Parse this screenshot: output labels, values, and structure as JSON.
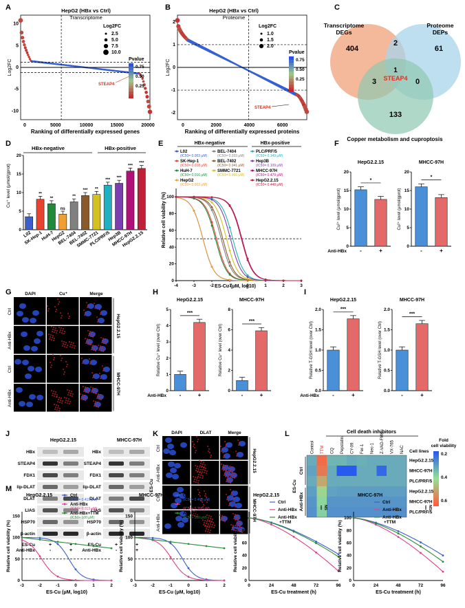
{
  "panels": {
    "A": {
      "letter": "A",
      "title": "HepG2 (HBx vs Ctrl)",
      "subtitle": "Transcriptome",
      "ylabel": "Log2FC",
      "xlabel": "Ranking of differentially expressed genes",
      "xticks": [
        "0",
        "5000",
        "10000",
        "15000",
        "20000"
      ],
      "yticks": [
        "-10",
        "-5",
        "0",
        "5",
        "10"
      ],
      "size_legend_title": "Log2FC",
      "size_legend": [
        "2.5",
        "5.0",
        "7.5",
        "10.0"
      ],
      "color_legend_title": "Pvalue",
      "color_legend": [
        "0.75",
        "0.50",
        "0.25"
      ],
      "annotation": "STEAP4"
    },
    "B": {
      "letter": "B",
      "title": "HepG2 (HBx vs Ctrl)",
      "subtitle": "Proteome",
      "ylabel": "Log2FC",
      "xlabel": "Ranking of differentially expressed proteins",
      "xticks": [
        "0",
        "2000",
        "4000",
        "6000"
      ],
      "yticks": [
        "-2",
        "-1",
        "0",
        "1",
        "2"
      ],
      "size_legend_title": "Log2FC",
      "size_legend": [
        "1.0",
        "1.5",
        "2.0"
      ],
      "color_legend_title": "Pvalue",
      "color_legend": [
        "0.75",
        "0.50",
        "0.25"
      ],
      "annotation": "STEAP4"
    },
    "C": {
      "letter": "C",
      "set1": "Transcriptome\nDEGs",
      "set1_l1": "Transcriptome",
      "set1_l2": "DEGs",
      "set2_l1": "Proteome",
      "set2_l2": "DEPs",
      "set3": "Copper metabolism and cuproptosis",
      "n_only1": "404",
      "n_12": "2",
      "n_only2": "61",
      "n_center": "1",
      "center_label": "STEAP4",
      "n_13": "3",
      "n_23": "0",
      "n_only3": "133"
    },
    "D": {
      "letter": "D",
      "ylabel": "Cu⁺ level (μmol/gprot)",
      "group1": "HBx-negative",
      "group2": "HBx-positive",
      "yticks": [
        "0",
        "5",
        "10",
        "15",
        "20"
      ]
    },
    "E": {
      "letter": "E",
      "ylabel": "Relative cell viability (%)",
      "xlabel": "ES-Cu (μM, log10)",
      "group1": "HBx-negative",
      "group2": "HBx-positive",
      "xticks": [
        "-4",
        "-3",
        "-2",
        "-1",
        "0",
        "1",
        "2",
        "3"
      ],
      "yticks": [
        "0",
        "20",
        "40",
        "60",
        "80",
        "100"
      ],
      "legend": [
        {
          "name": "L02",
          "ic": "(IC50= 0.003 μM)",
          "color": "#3a5fcd"
        },
        {
          "name": "SK-Hep-1",
          "ic": "(IC50= 0.018 μM)",
          "color": "#e8432e"
        },
        {
          "name": "HuH-7",
          "ic": "(IC50= 0.016 μM)",
          "color": "#1e8a3a"
        },
        {
          "name": "HepG2",
          "ic": "(IC50= 0.003 μM)",
          "color": "#f0a030"
        },
        {
          "name": "BEL-7404",
          "ic": "(IC50= 0.033 μM)",
          "color": "#808080"
        },
        {
          "name": "BEL-7402",
          "ic": "(IC50= 0.041 μM)",
          "color": "#8b5a2b"
        },
        {
          "name": "SMMC-7721",
          "ic": "(IC50= 0.066 μM)",
          "color": "#d4c020"
        },
        {
          "name": "PLC/PRF/5",
          "ic": "(IC50= 0.149 μM)",
          "color": "#20b0c0"
        },
        {
          "name": "Hep3B",
          "ic": "(IC50= 0.109 μM)",
          "color": "#7b3fb0"
        },
        {
          "name": "MHCC-97H",
          "ic": "(IC50= 0.479 μM)",
          "color": "#b0107a"
        },
        {
          "name": "HepG2.2.15",
          "ic": "(IC50= 0.448 μM)",
          "color": "#c0203a"
        }
      ]
    },
    "F": {
      "letter": "F",
      "plots": [
        {
          "title": "HepG2.2.15",
          "sig": "*"
        },
        {
          "title": "MHCC-97H",
          "sig": "*"
        }
      ],
      "ylabel": "Cu²⁺ level (μmol/gprot)",
      "row_label": "Anti-HBx",
      "ticks": [
        "-",
        "+"
      ],
      "yticks": [
        "0",
        "5",
        "10",
        "15",
        "20"
      ]
    },
    "G": {
      "letter": "G",
      "cols": [
        "DAPI",
        "Cu⁺",
        "Merge"
      ],
      "rows": [
        "Ctrl",
        "Anti-HBx",
        "Ctrl",
        "Anti-HBx"
      ],
      "side": [
        "HepG2.2.15",
        "MHCC-97H"
      ]
    },
    "H": {
      "letter": "H",
      "plots": [
        {
          "title": "HepG2.2.15",
          "sig": "***",
          "yticks": [
            "0",
            "1",
            "2",
            "3",
            "4",
            "5"
          ]
        },
        {
          "title": "MHCC-97H",
          "sig": "***",
          "yticks": [
            "0",
            "2",
            "4",
            "6",
            "8"
          ]
        }
      ],
      "ylabel": "Relative Cu⁺ level (over Ctrl)",
      "row_label": "Anti-HBx",
      "ticks": [
        "-",
        "+"
      ]
    },
    "I": {
      "letter": "I",
      "plots": [
        {
          "title": "HepG2.2.15",
          "sig": "***"
        },
        {
          "title": "MHCC-97H",
          "sig": "***"
        }
      ],
      "ylabel": "Relative T-GSH level (over Ctrl)",
      "yticks": [
        "0.0",
        "0.5",
        "1.0",
        "1.5",
        "2.0"
      ],
      "row_label": "Anti-HBx",
      "ticks": [
        "-",
        "+"
      ]
    },
    "J": {
      "letter": "J",
      "blots": [
        {
          "title": "HepG2.2.15"
        },
        {
          "title": "MHCC-97H"
        }
      ],
      "proteins": [
        "HBx",
        "STEAP4",
        "FDX1",
        "lip-DLAT",
        "DLAT",
        "LIAS",
        "HSP70",
        "β-actin"
      ],
      "row1": "ES-Cu",
      "row2": "Anti-HBx",
      "row1_vals": [
        "+",
        "+"
      ],
      "row2_vals": [
        "-",
        "+"
      ]
    },
    "K": {
      "letter": "K",
      "cols": [
        "DAPI",
        "DLAT",
        "Merge"
      ],
      "rows": [
        "Ctrl",
        "Anti-HBx",
        "Ctrl",
        "Anti-HBx"
      ],
      "side": [
        "HepG2.2.15",
        "MHCC-97H"
      ],
      "treat": "ES-Cu"
    },
    "L": {
      "letter": "L",
      "header": "Cell death inhibitors",
      "cols": [
        "Control",
        "TTM",
        "CQ",
        "Pepstatin",
        "CY-09",
        "Fer-1",
        "Nec-1",
        "Z-VAD-FMK",
        "VX-765",
        "NAC"
      ],
      "rows_title": "Cell lines",
      "rows": [
        "HepG2.2.15",
        "MHCC-97H",
        "PLC/PRF/5",
        "HepG2.2.15",
        "MHCC-97H",
        "PLC/PRF/5"
      ],
      "group1": "Ctrl",
      "group2": "Anti-HBx",
      "treat": "ES-Cu",
      "legend_title_l1": "Fold",
      "legend_title_l2": "cell viability",
      "legend_ticks": [
        "0.2",
        "0.4",
        "0.6"
      ]
    },
    "M": {
      "letter": "M",
      "plots": [
        {
          "title": "HepG2.2.15",
          "legend": [
            {
              "name": "Ctrl",
              "ic": "(IC50= 0.419 μM)"
            },
            {
              "name": "Anti-HBx",
              "ic": "(IC50= 0.013 μM)"
            },
            {
              "name": "Anti-HBx+TTM",
              "ic": "(IC50> 100 μM)"
            }
          ]
        },
        {
          "title": "MHCC-97H",
          "legend": [
            {
              "name": "Ctrl",
              "ic": "(IC50= 0.468 μM)"
            },
            {
              "name": "Anti-HBx",
              "ic": "(IC50= 0.118 μM)"
            },
            {
              "name": "Anti-HBx+TTM",
              "ic": "(IC50> 100 μM)"
            }
          ]
        }
      ],
      "ylabel": "Relative cell viability (%)",
      "xlabel": "ES-Cu (μM, log10)",
      "xticks": [
        "-3",
        "-2",
        "-1",
        "0",
        "1",
        "2"
      ],
      "yticks": [
        "0",
        "50",
        "100",
        "150"
      ]
    },
    "N": {
      "letter": "N",
      "plots": [
        {
          "title": "HepG2.2.15"
        },
        {
          "title": "MHCC-97H"
        }
      ],
      "legend": [
        "Ctrl",
        "Anti-HBx",
        "Anti-HBx",
        "+TTM"
      ],
      "sig": "***",
      "ns": "NS",
      "ylabel": "Relative cell viability (%)",
      "xlabel": "ES-Cu treatment (h)",
      "xticks": [
        "0",
        "24",
        "48",
        "72",
        "96"
      ],
      "yticks": [
        "0",
        "20",
        "40",
        "60",
        "80",
        "100"
      ]
    }
  },
  "chart_data": [
    {
      "type": "bar",
      "panel": "D",
      "categories": [
        "L02",
        "SK-Hep-1",
        "HuH-7",
        "HepG2",
        "BEL-7404",
        "BEL-7402",
        "SMMC-7721",
        "PLC/PRF/5",
        "Hep3B",
        "MHCC-97H",
        "HepG2.2.15"
      ],
      "values": [
        3.5,
        8.2,
        7.0,
        4.2,
        7.5,
        9.2,
        9.5,
        12.0,
        12.5,
        15.8,
        16.5
      ],
      "sig": [
        "",
        "**",
        "**",
        "ns",
        "**",
        "***",
        "**",
        "***",
        "***",
        "***",
        "***"
      ],
      "colors": [
        "#3a5fcd",
        "#e8432e",
        "#1e8a3a",
        "#f0a030",
        "#808080",
        "#8b5a2b",
        "#d4c020",
        "#20b0c0",
        "#7b3fb0",
        "#b0107a",
        "#c0203a"
      ],
      "ylim": [
        0,
        20
      ]
    },
    {
      "type": "bar",
      "panel": "F1",
      "categories": [
        "-",
        "+"
      ],
      "values": [
        15.2,
        12.6
      ],
      "ylim": [
        0,
        20
      ]
    },
    {
      "type": "bar",
      "panel": "F2",
      "categories": [
        "-",
        "+"
      ],
      "values": [
        16.0,
        13.1
      ],
      "ylim": [
        0,
        20
      ]
    },
    {
      "type": "bar",
      "panel": "H1",
      "categories": [
        "-",
        "+"
      ],
      "values": [
        1.0,
        4.2
      ],
      "ylim": [
        0,
        5
      ]
    },
    {
      "type": "bar",
      "panel": "H2",
      "categories": [
        "-",
        "+"
      ],
      "values": [
        1.0,
        5.9
      ],
      "ylim": [
        0,
        8
      ]
    },
    {
      "type": "bar",
      "panel": "I1",
      "categories": [
        "-",
        "+"
      ],
      "values": [
        1.0,
        1.77
      ],
      "ylim": [
        0,
        2
      ]
    },
    {
      "type": "bar",
      "panel": "I2",
      "categories": [
        "-",
        "+"
      ],
      "values": [
        1.0,
        1.65
      ],
      "ylim": [
        0,
        2
      ]
    },
    {
      "type": "heatmap",
      "panel": "L",
      "values": [
        [
          0.2,
          0.58,
          0.22,
          0.22,
          0.2,
          0.21,
          0.2,
          0.2,
          0.2,
          0.2
        ],
        [
          0.18,
          0.55,
          0.2,
          0.02,
          0.02,
          0.2,
          0.2,
          0.05,
          0.2,
          0.2
        ],
        [
          0.2,
          0.45,
          0.2,
          0.2,
          0.2,
          0.2,
          0.2,
          0.2,
          0.2,
          0.2
        ],
        [
          0.17,
          0.35,
          0.18,
          0.17,
          0.17,
          0.17,
          0.17,
          0.17,
          0.17,
          0.17
        ],
        [
          0.15,
          0.3,
          0.15,
          0.15,
          0.15,
          0.15,
          0.15,
          0.15,
          0.15,
          0.15
        ],
        [
          0.14,
          0.28,
          0.14,
          0.14,
          0.14,
          0.14,
          0.14,
          0.14,
          0.14,
          0.14
        ]
      ]
    }
  ]
}
